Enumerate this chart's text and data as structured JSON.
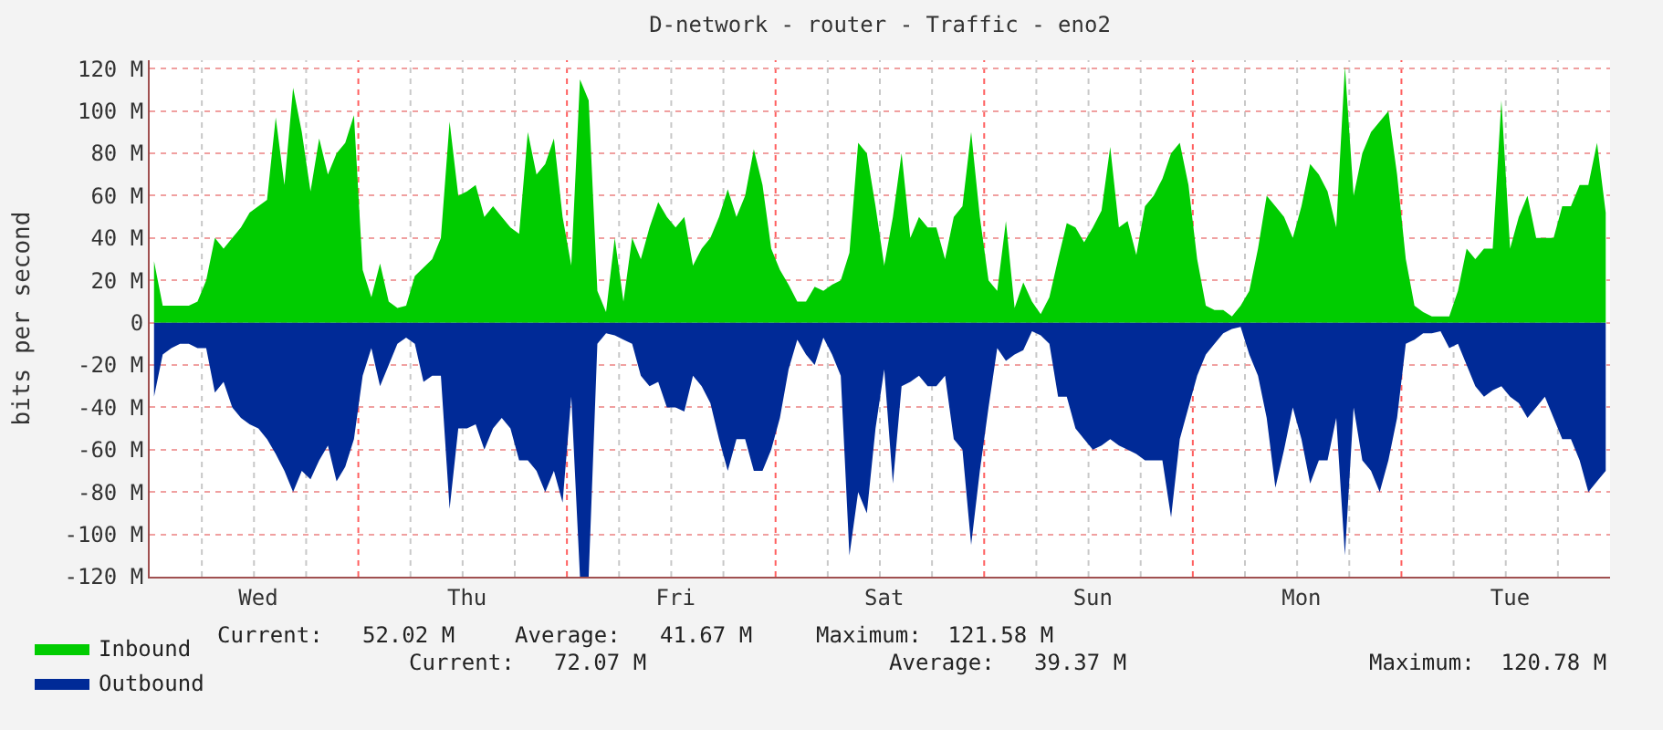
{
  "chart_data": {
    "type": "area",
    "title": "D-network - router - Traffic - eno2",
    "ylabel": "bits per second",
    "categories": [
      null,
      null,
      null,
      null,
      null,
      null,
      null,
      null,
      null,
      null,
      null,
      null,
      "Wed",
      null,
      null,
      null,
      null,
      null,
      null,
      null,
      null,
      null,
      null,
      null,
      null,
      null,
      null,
      null,
      null,
      null,
      null,
      null,
      null,
      null,
      null,
      null,
      "Thu",
      null,
      null,
      null,
      null,
      null,
      null,
      null,
      null,
      null,
      null,
      null,
      null,
      null,
      null,
      null,
      null,
      null,
      null,
      null,
      null,
      null,
      null,
      null,
      "Fri",
      null,
      null,
      null,
      null,
      null,
      null,
      null,
      null,
      null,
      null,
      null,
      null,
      null,
      null,
      null,
      null,
      null,
      null,
      null,
      null,
      null,
      null,
      null,
      "Sat",
      null,
      null,
      null,
      null,
      null,
      null,
      null,
      null,
      null,
      null,
      null,
      null,
      null,
      null,
      null,
      null,
      null,
      null,
      null,
      null,
      null,
      null,
      null,
      "Sun",
      null,
      null,
      null,
      null,
      null,
      null,
      null,
      null,
      null,
      null,
      null,
      null,
      null,
      null,
      null,
      null,
      null,
      null,
      null,
      null,
      null,
      null,
      null,
      "Mon",
      null,
      null,
      null,
      null,
      null,
      null,
      null,
      null,
      null,
      null,
      null,
      null,
      null,
      null,
      null,
      null,
      null,
      null,
      null,
      null,
      null,
      null,
      null,
      "Tue",
      null,
      null,
      null,
      null,
      null,
      null,
      null,
      null,
      null,
      null,
      null
    ],
    "ylim": [
      -120,
      124
    ],
    "yticks": [
      {
        "value": -120,
        "label": "-120 M"
      },
      {
        "value": -100,
        "label": "-100 M"
      },
      {
        "value": -80,
        "label": "-80 M"
      },
      {
        "value": -60,
        "label": "-60 M"
      },
      {
        "value": -40,
        "label": "-40 M"
      },
      {
        "value": -20,
        "label": "-20 M"
      },
      0,
      {
        "value": 20,
        "label": "20 M"
      },
      {
        "value": 40,
        "label": "40 M"
      },
      {
        "value": 60,
        "label": "60 M"
      },
      {
        "value": 80,
        "label": "80 M"
      },
      {
        "value": 100,
        "label": "100 M"
      },
      {
        "value": 120,
        "label": "120 M"
      }
    ],
    "grid": true,
    "legend": "bottom",
    "annotations": [
      "Current:   52.02 M",
      "Average:   41.67 M",
      "Maximum:  121.58 M",
      "Current:   72.07 M",
      "Average:   39.37 M",
      "Maximum:  120.78 M"
    ],
    "series": [
      {
        "name": "Inbound",
        "color": "#00cc00",
        "values": [
          29,
          8,
          8,
          8,
          8,
          10,
          20,
          40,
          35,
          40,
          45,
          52,
          55,
          58,
          97,
          65,
          111,
          90,
          62,
          87,
          70,
          80,
          85,
          98,
          25,
          12,
          28,
          10,
          7,
          8,
          22,
          26,
          30,
          40,
          95,
          60,
          62,
          65,
          50,
          55,
          50,
          45,
          42,
          90,
          70,
          75,
          87,
          50,
          27,
          115,
          105,
          15,
          5,
          40,
          10,
          40,
          30,
          45,
          57,
          50,
          45,
          50,
          27,
          35,
          40,
          50,
          63,
          50,
          60,
          82,
          65,
          35,
          25,
          18,
          10,
          10,
          17,
          15,
          18,
          20,
          33,
          85,
          80,
          55,
          27,
          50,
          80,
          40,
          50,
          45,
          45,
          30,
          50,
          55,
          90,
          50,
          20,
          15,
          48,
          7,
          19,
          10,
          4,
          12,
          30,
          47,
          45,
          38,
          45,
          53,
          83,
          45,
          48,
          32,
          55,
          60,
          68,
          80,
          85,
          65,
          30,
          8,
          6,
          6,
          3,
          8,
          15,
          35,
          60,
          55,
          50,
          40,
          55,
          75,
          70,
          62,
          45,
          121,
          60,
          80,
          90,
          95,
          100,
          70,
          30,
          8,
          5,
          3,
          3,
          3,
          15,
          35,
          30,
          35,
          35,
          105,
          35,
          50,
          60,
          40,
          40,
          40,
          55,
          55,
          65,
          65,
          85,
          52
        ]
      },
      {
        "name": "Outbound",
        "color": "#002a97",
        "values": [
          -35,
          -15,
          -12,
          -10,
          -10,
          -12,
          -12,
          -33,
          -28,
          -40,
          -45,
          -48,
          -50,
          -55,
          -62,
          -70,
          -80,
          -70,
          -74,
          -65,
          -58,
          -75,
          -68,
          -55,
          -25,
          -12,
          -30,
          -20,
          -10,
          -7,
          -10,
          -28,
          -25,
          -25,
          -88,
          -50,
          -50,
          -48,
          -60,
          -50,
          -45,
          -50,
          -65,
          -65,
          -70,
          -80,
          -70,
          -85,
          -35,
          -120,
          -120,
          -10,
          -5,
          -6,
          -8,
          -10,
          -25,
          -30,
          -28,
          -40,
          -40,
          -42,
          -25,
          -30,
          -38,
          -55,
          -70,
          -55,
          -55,
          -70,
          -70,
          -60,
          -45,
          -22,
          -8,
          -15,
          -20,
          -7,
          -15,
          -25,
          -110,
          -80,
          -90,
          -50,
          -22,
          -76,
          -30,
          -28,
          -25,
          -30,
          -30,
          -25,
          -55,
          -60,
          -105,
          -70,
          -40,
          -12,
          -18,
          -15,
          -13,
          -4,
          -6,
          -10,
          -35,
          -35,
          -50,
          -55,
          -60,
          -58,
          -55,
          -58,
          -60,
          -62,
          -65,
          -65,
          -65,
          -92,
          -55,
          -40,
          -25,
          -15,
          -10,
          -5,
          -3,
          -2,
          -15,
          -25,
          -45,
          -78,
          -60,
          -40,
          -55,
          -76,
          -65,
          -65,
          -45,
          -110,
          -40,
          -65,
          -70,
          -80,
          -65,
          -45,
          -10,
          -8,
          -5,
          -5,
          -4,
          -12,
          -10,
          -20,
          -30,
          -35,
          -32,
          -30,
          -35,
          -38,
          -45,
          -40,
          -35,
          -45,
          -55,
          -55,
          -65,
          -80,
          -75,
          -70
        ]
      }
    ]
  }
}
